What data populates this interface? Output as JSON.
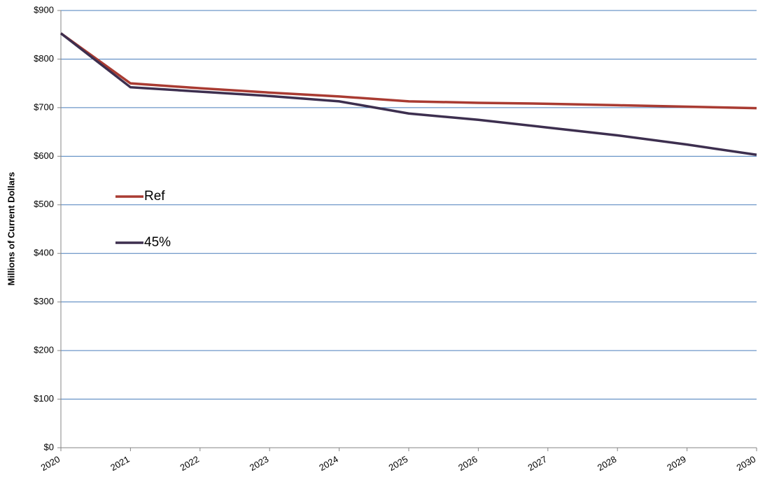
{
  "chart_data": {
    "type": "line",
    "y_axis_label": "Millions of Current Dollars",
    "x": [
      2020,
      2021,
      2022,
      2023,
      2024,
      2025,
      2026,
      2027,
      2028,
      2029,
      2030
    ],
    "series": [
      {
        "name": "Ref",
        "color": "#a93b32",
        "values": [
          853,
          750,
          740,
          731,
          723,
          713,
          710,
          708,
          705,
          702,
          699
        ]
      },
      {
        "name": "45%",
        "color": "#3d2f4f",
        "values": [
          853,
          742,
          733,
          724,
          713,
          688,
          675,
          659,
          643,
          624,
          603
        ]
      }
    ],
    "xlim": [
      2020,
      2030
    ],
    "xticks": [
      2020,
      2021,
      2022,
      2023,
      2024,
      2025,
      2026,
      2027,
      2028,
      2029,
      2030
    ],
    "ylim": [
      0,
      900
    ],
    "yticks": [
      {
        "value": 0,
        "label": "$0"
      },
      {
        "value": 100,
        "label": "$100"
      },
      {
        "value": 200,
        "label": "$200"
      },
      {
        "value": 300,
        "label": "$300"
      },
      {
        "value": 400,
        "label": "$400"
      },
      {
        "value": 500,
        "label": "$500"
      },
      {
        "value": 600,
        "label": "$600"
      },
      {
        "value": 700,
        "label": "$700"
      },
      {
        "value": 800,
        "label": "$800"
      },
      {
        "value": 900,
        "label": "$900"
      }
    ],
    "grid": true,
    "grid_color": "#4a7ebb",
    "legend": "left"
  }
}
